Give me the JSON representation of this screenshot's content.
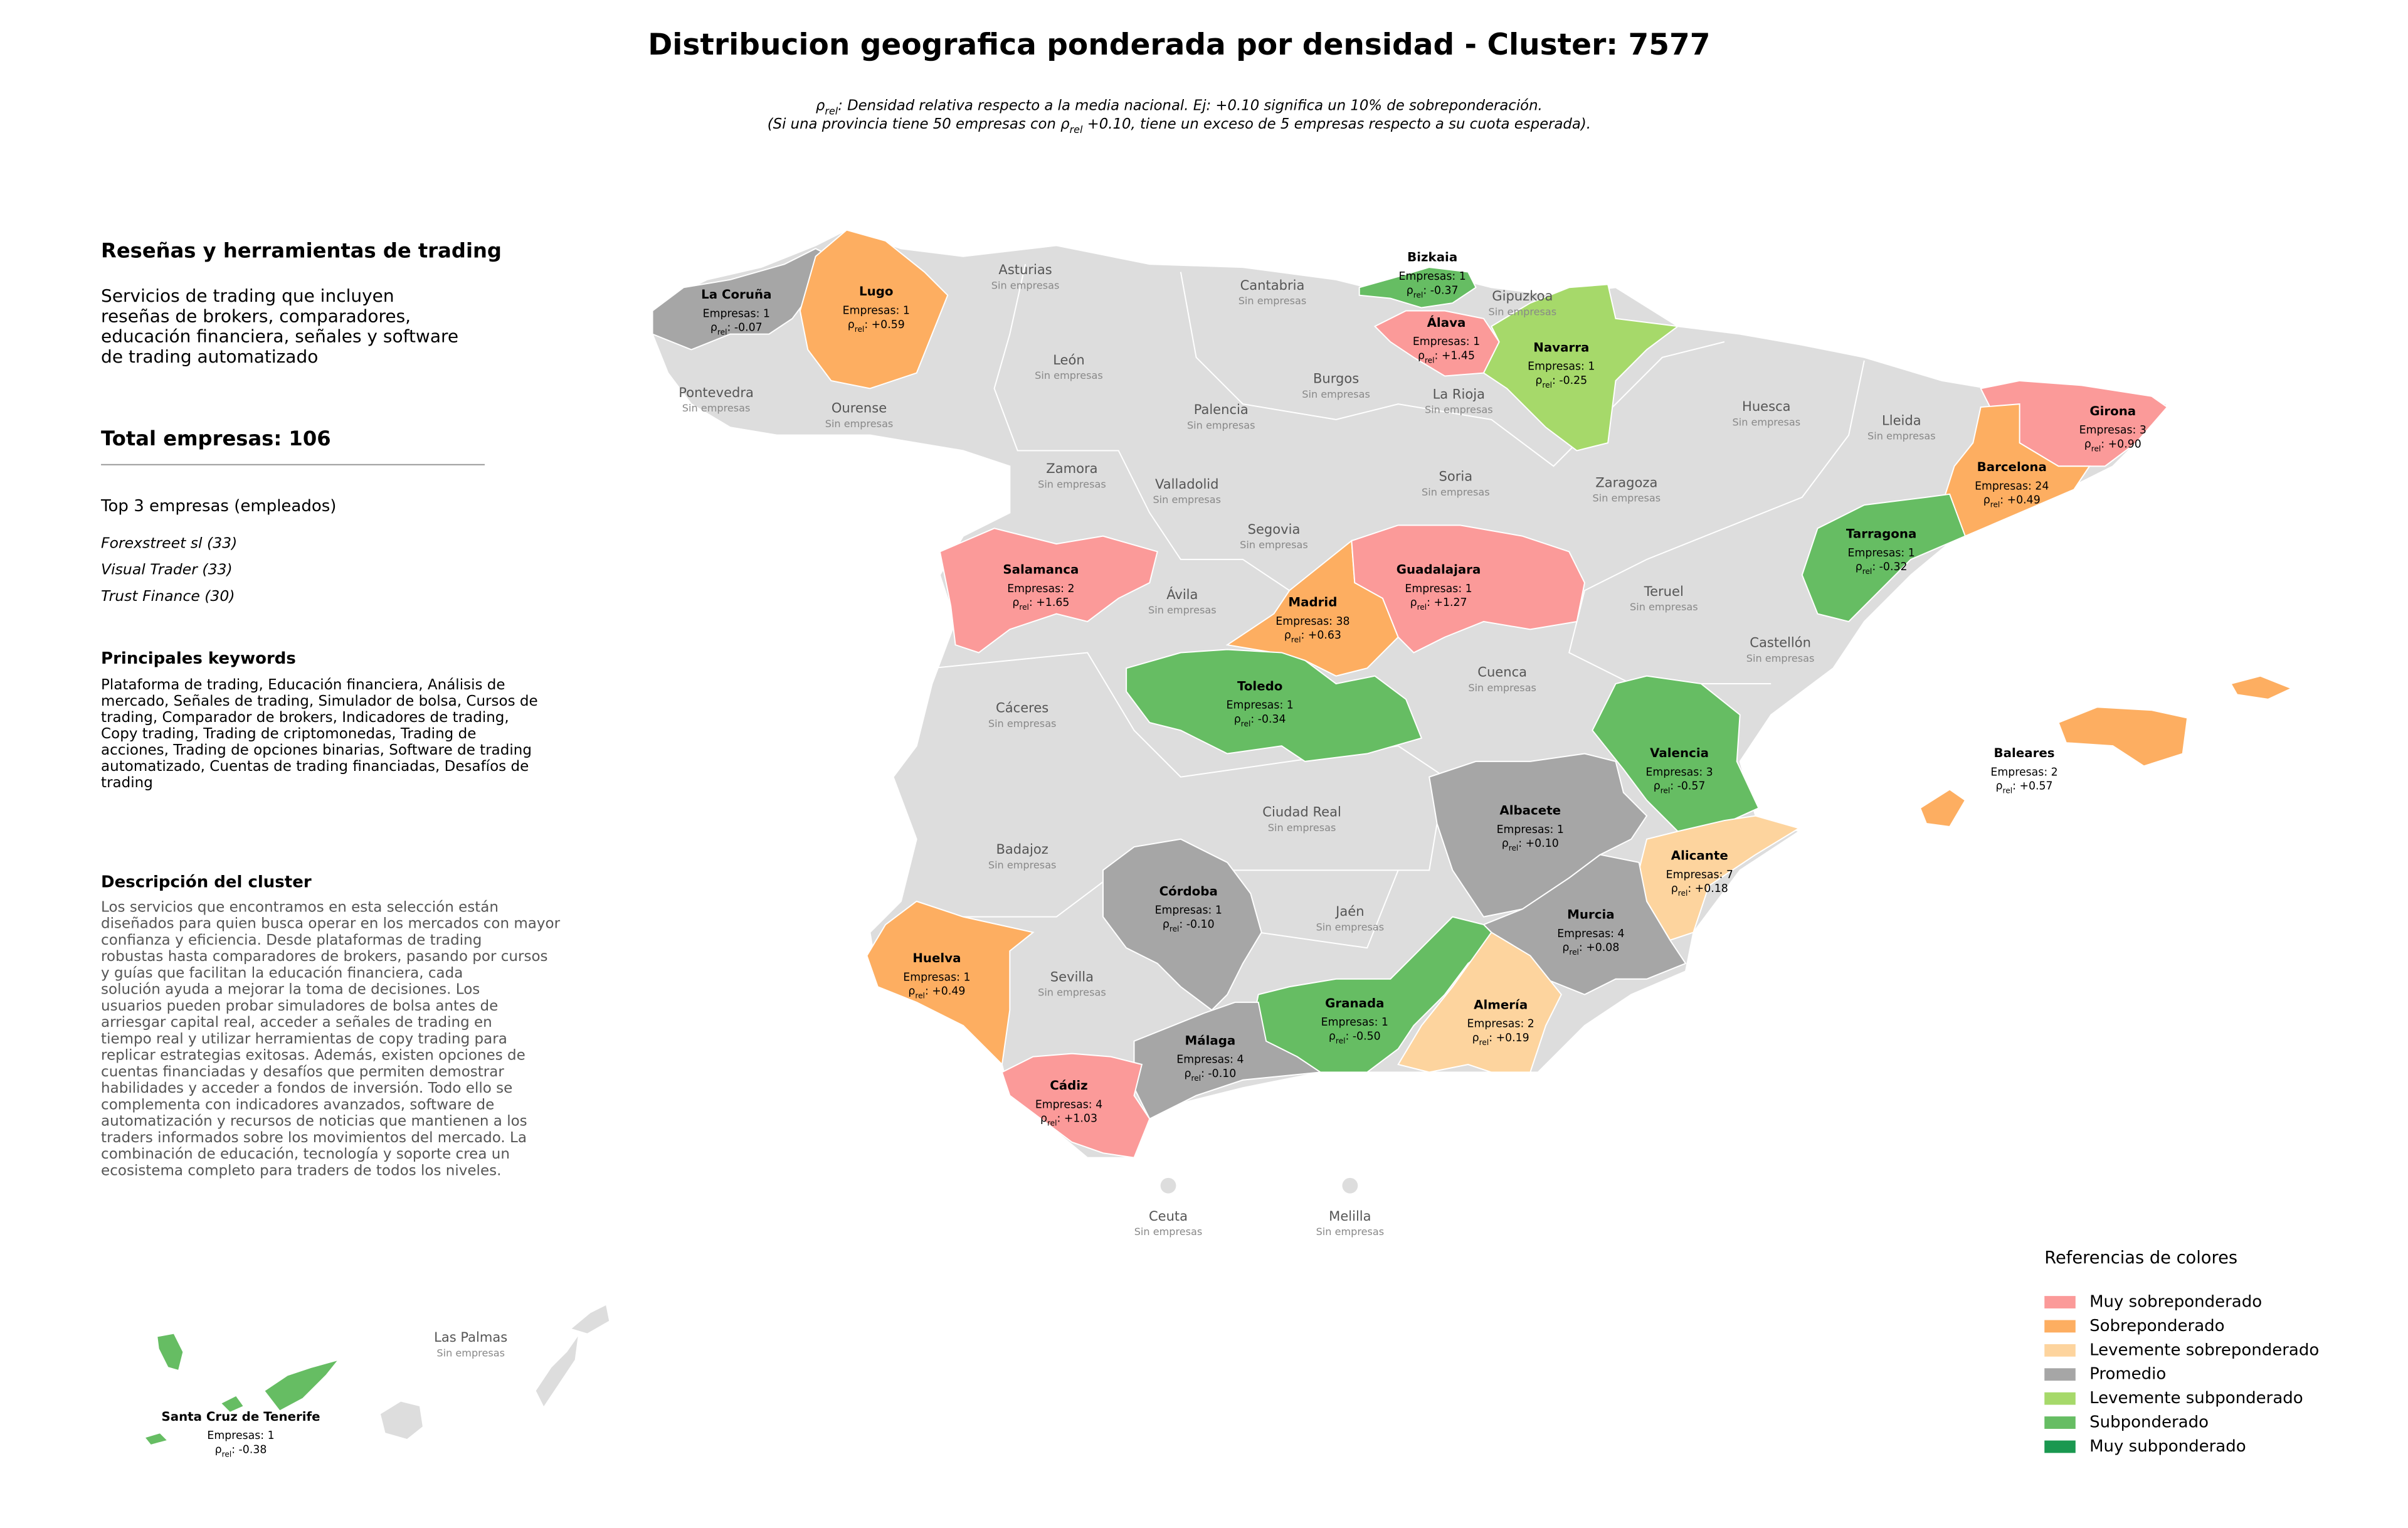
{
  "header": {
    "title": "Distribucion geografica ponderada por densidad - Cluster: 7577",
    "note": [
      [
        {
          "text": "ρ"
        },
        {
          "sub": "rel"
        },
        {
          "text": ": Densidad relativa respecto a la media nacional. Ej: +0.10 significa un 10% de sobreponderación."
        }
      ],
      [
        {
          "text": "(Si una provincia tiene 50 empresas con "
        },
        {
          "text": "ρ"
        },
        {
          "sub": "rel"
        },
        {
          "text": " +0.10, tiene un exceso de 5 empresas respecto a su cuota esperada)."
        }
      ]
    ]
  },
  "panel": {
    "title": "Reseñas y herramientas de trading",
    "summary": [
      "Servicios de trading que incluyen",
      "reseñas de brokers, comparadores,",
      "educación financiera, señales y software",
      "de trading automatizado"
    ],
    "total": "Total empresas: 106",
    "top_title": "Top 3 empresas (empleados)",
    "top": [
      "Forexstreet sl (33)",
      "Visual Trader (33)",
      "Trust Finance (30)"
    ],
    "keywords_title": "Principales keywords",
    "keywords": [
      "Plataforma de trading, Educación financiera, Análisis de",
      "mercado, Señales de trading, Simulador de bolsa, Cursos de",
      "trading, Comparador de brokers, Indicadores de trading,",
      "Copy trading, Trading de criptomonedas, Trading de",
      "acciones, Trading de opciones binarias, Software de trading",
      "automatizado, Cuentas de trading financiadas, Desafíos de",
      "trading"
    ],
    "description_title": "Descripción del cluster",
    "description": [
      "Los servicios que encontramos en esta selección están",
      "diseñados para quien busca operar en los mercados con mayor",
      "confianza y eficiencia. Desde plataformas de trading",
      "robustas hasta comparadores de brokers, pasando por cursos",
      "y guías que facilitan la educación financiera, cada",
      "solución ayuda a mejorar la toma de decisiones. Los",
      "usuarios pueden probar simuladores de bolsa antes de",
      "arriesgar capital real, acceder a señales de trading en",
      "tiempo real y utilizar herramientas de copy trading para",
      "replicar estrategias exitosas. Además, existen opciones de",
      "cuentas financiadas y desafíos que permiten demostrar",
      "habilidades y acceder a fondos de inversión. Todo ello se",
      "complementa con indicadores avanzados, software de",
      "automatización y recursos de noticias que mantienen a los",
      "traders informados sobre los movimientos del mercado. La",
      "combinación de educación, tecnología y soporte crea un",
      "ecosistema completo para traders de todos los niveles."
    ]
  },
  "legend": {
    "title": "Referencias de colores",
    "items": [
      {
        "name": "Muy sobreponderado",
        "color": "#fb9a99"
      },
      {
        "name": "Sobreponderado",
        "color": "#fdae61"
      },
      {
        "name": "Levemente sobreponderado",
        "color": "#fdd49e"
      },
      {
        "name": "Promedio",
        "color": "#a6a6a6"
      },
      {
        "name": "Levemente subponderado",
        "color": "#a6d96a"
      },
      {
        "name": "Subponderado",
        "color": "#66bd63"
      },
      {
        "name": "Muy subponderado",
        "color": "#1a9850"
      }
    ]
  },
  "provinces": [
    {
      "name": "La Coruña",
      "companies": "Empresas: 1",
      "density": [
        {
          "text": "ρ"
        },
        {
          "sub": "rel"
        },
        {
          "text": ": -0.07"
        }
      ],
      "color": "#a6a6a6"
    },
    {
      "name": "Lugo",
      "companies": "Empresas: 1",
      "density": [
        {
          "text": "ρ"
        },
        {
          "sub": "rel"
        },
        {
          "text": ": +0.59"
        }
      ],
      "color": "#fdae61"
    },
    {
      "name": "Bizkaia",
      "companies": "Empresas: 1",
      "density": [
        {
          "text": "ρ"
        },
        {
          "sub": "rel"
        },
        {
          "text": ": -0.37"
        }
      ],
      "color": "#66bd63"
    },
    {
      "name": "Álava",
      "companies": "Empresas: 1",
      "density": [
        {
          "text": "ρ"
        },
        {
          "sub": "rel"
        },
        {
          "text": ": +1.45"
        }
      ],
      "color": "#fb9a99"
    },
    {
      "name": "Navarra",
      "companies": "Empresas: 1",
      "density": [
        {
          "text": "ρ"
        },
        {
          "sub": "rel"
        },
        {
          "text": ": -0.25"
        }
      ],
      "color": "#a6d96a"
    },
    {
      "name": "Girona",
      "companies": "Empresas: 3",
      "density": [
        {
          "text": "ρ"
        },
        {
          "sub": "rel"
        },
        {
          "text": ": +0.90"
        }
      ],
      "color": "#fb9a99"
    },
    {
      "name": "Barcelona",
      "companies": "Empresas: 24",
      "density": [
        {
          "text": "ρ"
        },
        {
          "sub": "rel"
        },
        {
          "text": ": +0.49"
        }
      ],
      "color": "#fdae61"
    },
    {
      "name": "Tarragona",
      "companies": "Empresas: 1",
      "density": [
        {
          "text": "ρ"
        },
        {
          "sub": "rel"
        },
        {
          "text": ": -0.32"
        }
      ],
      "color": "#66bd63"
    },
    {
      "name": "Salamanca",
      "companies": "Empresas: 2",
      "density": [
        {
          "text": "ρ"
        },
        {
          "sub": "rel"
        },
        {
          "text": ": +1.65"
        }
      ],
      "color": "#fb9a99"
    },
    {
      "name": "Madrid",
      "companies": "Empresas: 38",
      "density": [
        {
          "text": "ρ"
        },
        {
          "sub": "rel"
        },
        {
          "text": ": +0.63"
        }
      ],
      "color": "#fdae61"
    },
    {
      "name": "Guadalajara",
      "companies": "Empresas: 1",
      "density": [
        {
          "text": "ρ"
        },
        {
          "sub": "rel"
        },
        {
          "text": ": +1.27"
        }
      ],
      "color": "#fb9a99"
    },
    {
      "name": "Toledo",
      "companies": "Empresas: 1",
      "density": [
        {
          "text": "ρ"
        },
        {
          "sub": "rel"
        },
        {
          "text": ": -0.34"
        }
      ],
      "color": "#66bd63"
    },
    {
      "name": "Valencia",
      "companies": "Empresas: 3",
      "density": [
        {
          "text": "ρ"
        },
        {
          "sub": "rel"
        },
        {
          "text": ": -0.57"
        }
      ],
      "color": "#66bd63"
    },
    {
      "name": "Baleares",
      "companies": "Empresas: 2",
      "density": [
        {
          "text": "ρ"
        },
        {
          "sub": "rel"
        },
        {
          "text": ": +0.57"
        }
      ],
      "color": "#fdae61"
    },
    {
      "name": "Albacete",
      "companies": "Empresas: 1",
      "density": [
        {
          "text": "ρ"
        },
        {
          "sub": "rel"
        },
        {
          "text": ": +0.10"
        }
      ],
      "color": "#a6a6a6"
    },
    {
      "name": "Alicante",
      "companies": "Empresas: 7",
      "density": [
        {
          "text": "ρ"
        },
        {
          "sub": "rel"
        },
        {
          "text": ": +0.18"
        }
      ],
      "color": "#fdd49e"
    },
    {
      "name": "Córdoba",
      "companies": "Empresas: 1",
      "density": [
        {
          "text": "ρ"
        },
        {
          "sub": "rel"
        },
        {
          "text": ": -0.10"
        }
      ],
      "color": "#a6a6a6"
    },
    {
      "name": "Murcia",
      "companies": "Empresas: 4",
      "density": [
        {
          "text": "ρ"
        },
        {
          "sub": "rel"
        },
        {
          "text": ": +0.08"
        }
      ],
      "color": "#a6a6a6"
    },
    {
      "name": "Huelva",
      "companies": "Empresas: 1",
      "density": [
        {
          "text": "ρ"
        },
        {
          "sub": "rel"
        },
        {
          "text": ": +0.49"
        }
      ],
      "color": "#fdae61"
    },
    {
      "name": "Granada",
      "companies": "Empresas: 1",
      "density": [
        {
          "text": "ρ"
        },
        {
          "sub": "rel"
        },
        {
          "text": ": -0.50"
        }
      ],
      "color": "#66bd63"
    },
    {
      "name": "Almería",
      "companies": "Empresas: 2",
      "density": [
        {
          "text": "ρ"
        },
        {
          "sub": "rel"
        },
        {
          "text": ": +0.19"
        }
      ],
      "color": "#fdd49e"
    },
    {
      "name": "Málaga",
      "companies": "Empresas: 4",
      "density": [
        {
          "text": "ρ"
        },
        {
          "sub": "rel"
        },
        {
          "text": ": -0.10"
        }
      ],
      "color": "#a6a6a6"
    },
    {
      "name": "Cádiz",
      "companies": "Empresas: 4",
      "density": [
        {
          "text": "ρ"
        },
        {
          "sub": "rel"
        },
        {
          "text": ": +1.03"
        }
      ],
      "color": "#fb9a99"
    },
    {
      "name": "Santa Cruz de Tenerife",
      "companies": "Empresas: 1",
      "density": [
        {
          "text": "ρ"
        },
        {
          "sub": "rel"
        },
        {
          "text": ": -0.38"
        }
      ],
      "color": "#66bd63"
    }
  ],
  "empty_provinces": [
    {
      "name": "Asturias",
      "note": "Sin empresas"
    },
    {
      "name": "Cantabria",
      "note": "Sin empresas"
    },
    {
      "name": "Gipuzkoa",
      "note": "Sin empresas"
    },
    {
      "name": "Pontevedra",
      "note": "Sin empresas"
    },
    {
      "name": "León",
      "note": "Sin empresas"
    },
    {
      "name": "Burgos",
      "note": "Sin empresas"
    },
    {
      "name": "Ourense",
      "note": "Sin empresas"
    },
    {
      "name": "Palencia",
      "note": "Sin empresas"
    },
    {
      "name": "Huesca",
      "note": "Sin empresas"
    },
    {
      "name": "Lleida",
      "note": "Sin empresas"
    },
    {
      "name": "La Rioja",
      "note": "Sin empresas"
    },
    {
      "name": "Zamora",
      "note": "Sin empresas"
    },
    {
      "name": "Valladolid",
      "note": "Sin empresas"
    },
    {
      "name": "Soria",
      "note": "Sin empresas"
    },
    {
      "name": "Zaragoza",
      "note": "Sin empresas"
    },
    {
      "name": "Segovia",
      "note": "Sin empresas"
    },
    {
      "name": "Ávila",
      "note": "Sin empresas"
    },
    {
      "name": "Teruel",
      "note": "Sin empresas"
    },
    {
      "name": "Castellón",
      "note": "Sin empresas"
    },
    {
      "name": "Cáceres",
      "note": "Sin empresas"
    },
    {
      "name": "Cuenca",
      "note": "Sin empresas"
    },
    {
      "name": "Ciudad Real",
      "note": "Sin empresas"
    },
    {
      "name": "Badajoz",
      "note": "Sin empresas"
    },
    {
      "name": "Jaén",
      "note": "Sin empresas"
    },
    {
      "name": "Sevilla",
      "note": "Sin empresas"
    },
    {
      "name": "Ceuta",
      "note": "Sin empresas"
    },
    {
      "name": "Melilla",
      "note": "Sin empresas"
    },
    {
      "name": "Las Palmas",
      "note": "Sin empresas"
    }
  ]
}
